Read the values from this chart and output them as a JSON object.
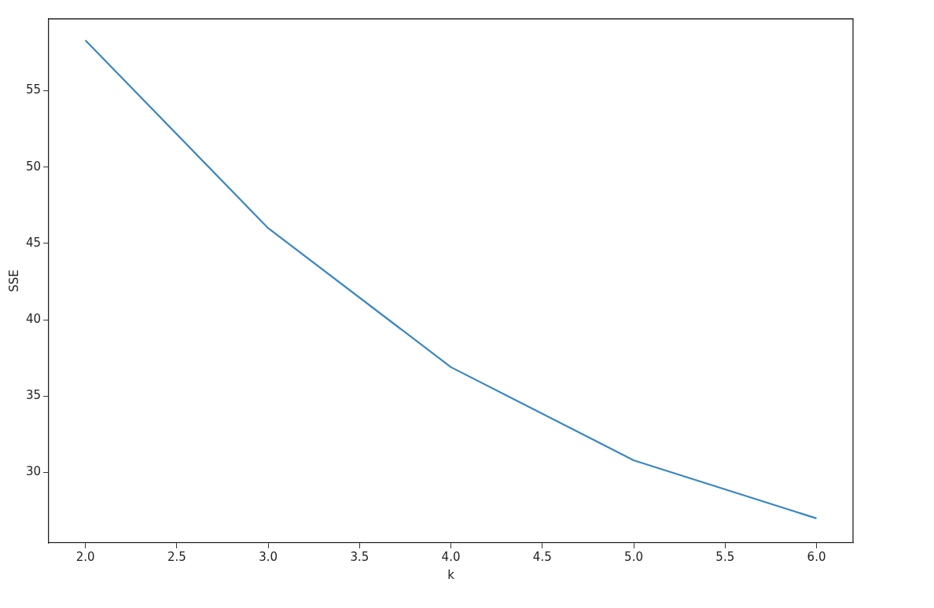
{
  "chart_data": {
    "type": "line",
    "xlabel": "k",
    "ylabel": "SSE",
    "x": [
      2,
      3,
      4,
      5,
      6
    ],
    "series": [
      {
        "color": "#3b86c0",
        "values": [
          58.3,
          46.0,
          36.9,
          30.8,
          27.0
        ]
      }
    ],
    "xlim": [
      1.8,
      6.2
    ],
    "xticks": [
      {
        "value": 2,
        "label": "2.0"
      },
      {
        "value": 2.5,
        "label": "2.5"
      },
      {
        "value": 3,
        "label": "3.0"
      },
      {
        "value": 3.5,
        "label": "3.5"
      },
      {
        "value": 4,
        "label": "4.0"
      },
      {
        "value": 4.5,
        "label": "4.5"
      },
      {
        "value": 5,
        "label": "5.0"
      },
      {
        "value": 5.5,
        "label": "5.5"
      },
      {
        "value": 6,
        "label": "6.0"
      }
    ],
    "ylim": [
      25.4,
      59.7
    ],
    "yticks": [
      30,
      35,
      40,
      45,
      50,
      55
    ],
    "grid": false,
    "legend": false,
    "marker": "none",
    "line_style": "solid"
  }
}
